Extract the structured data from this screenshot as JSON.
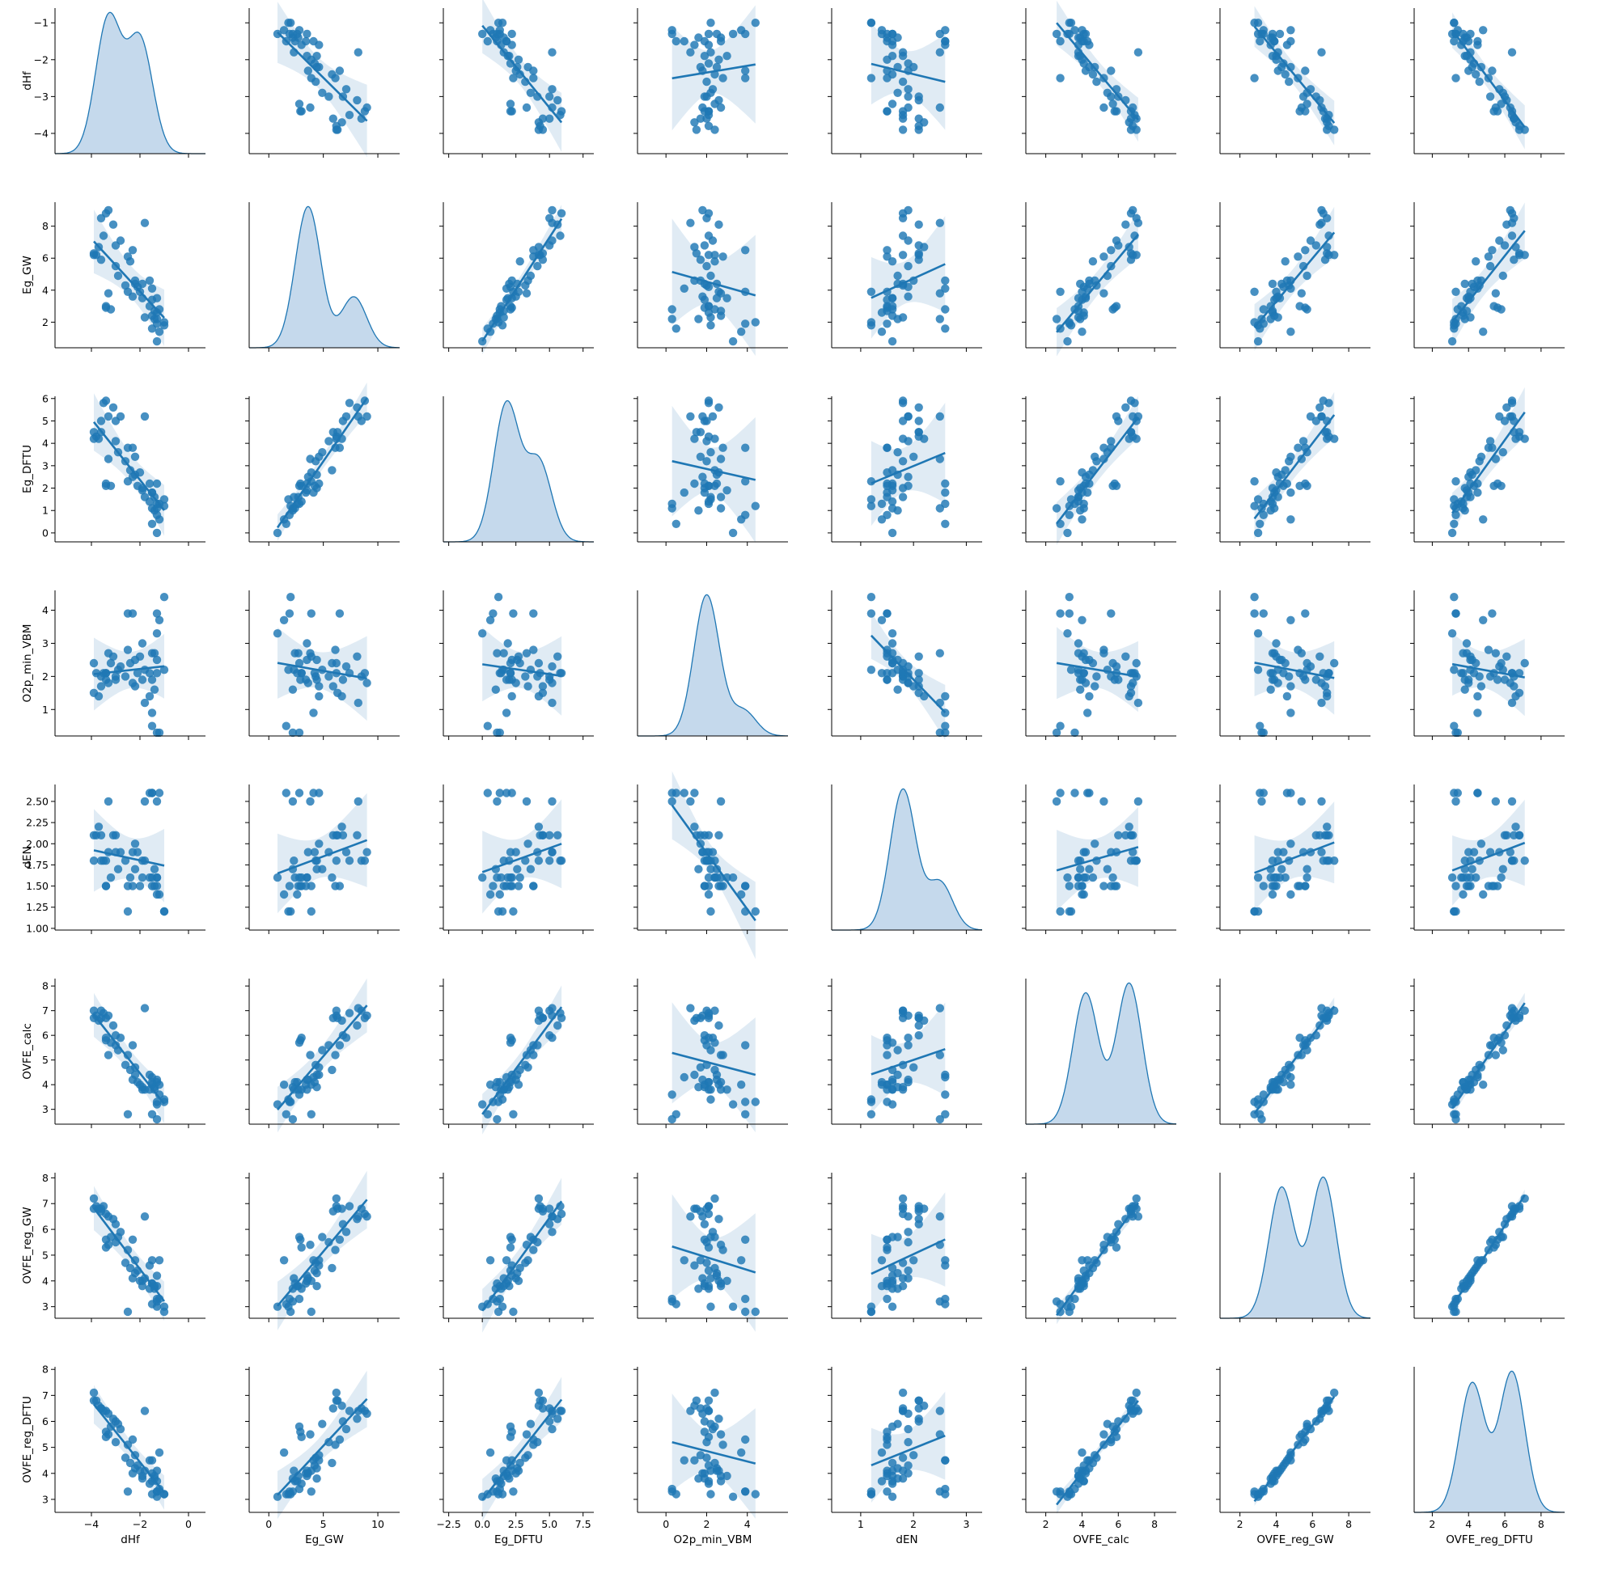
{
  "chart_data": {
    "type": "scatter",
    "kind": "pairplot",
    "variables": [
      "dHf",
      "Eg_GW",
      "Eg_DFTU",
      "O2p_min_VBM",
      "dEN",
      "OVFE_calc",
      "OVFE_reg_GW",
      "OVFE_reg_DFTU"
    ],
    "diagonal": "kde",
    "off_diagonal": "regplot",
    "colors": {
      "point": "#1f77b4",
      "line": "#1f77b4",
      "kde_fill": "#c5d9ec",
      "ci_band": "#dbe7f2"
    },
    "axes": {
      "dHf": {
        "lim": [
          -5.5,
          0.7
        ],
        "ticks": [
          -4,
          -2,
          0
        ],
        "tick_labels": [
          "−4",
          "−2",
          "0"
        ],
        "ylim": [
          -4.55,
          -0.6
        ],
        "yticks": [
          -4,
          -3,
          -2,
          -1
        ],
        "ytick_labels": [
          "−4",
          "−3",
          "−2",
          "−1"
        ]
      },
      "Eg_GW": {
        "lim": [
          -1.8,
          12.0
        ],
        "ticks": [
          0,
          5,
          10
        ],
        "tick_labels": [
          "0",
          "5",
          "10"
        ],
        "ylim": [
          0.4,
          9.5
        ],
        "yticks": [
          2,
          4,
          6,
          8
        ],
        "ytick_labels": [
          "2",
          "4",
          "6",
          "8"
        ]
      },
      "Eg_DFTU": {
        "lim": [
          -2.9,
          8.3
        ],
        "ticks": [
          -2.5,
          0.0,
          2.5,
          5.0,
          7.5
        ],
        "tick_labels": [
          "−2.5",
          "0.0",
          "2.5",
          "5.0",
          "7.5"
        ],
        "ylim": [
          -0.4,
          6.1
        ],
        "yticks": [
          0,
          1,
          2,
          3,
          4,
          5,
          6
        ],
        "ytick_labels": [
          "0",
          "1",
          "2",
          "3",
          "4",
          "5",
          "6"
        ]
      },
      "O2p_min_VBM": {
        "lim": [
          -1.4,
          6.0
        ],
        "ticks": [
          0,
          2,
          4
        ],
        "tick_labels": [
          "0",
          "2",
          "4"
        ],
        "ylim": [
          0.2,
          4.6
        ],
        "yticks": [
          1,
          2,
          3,
          4
        ],
        "ytick_labels": [
          "1",
          "2",
          "3",
          "4"
        ]
      },
      "dEN": {
        "lim": [
          0.45,
          3.3
        ],
        "ticks": [
          1,
          2,
          3
        ],
        "tick_labels": [
          "1",
          "2",
          "3"
        ],
        "ylim": [
          0.98,
          2.7
        ],
        "yticks": [
          1.0,
          1.25,
          1.5,
          1.75,
          2.0,
          2.25,
          2.5
        ],
        "ytick_labels": [
          "1.00",
          "1.25",
          "1.50",
          "1.75",
          "2.00",
          "2.25",
          "2.50"
        ]
      },
      "OVFE_calc": {
        "lim": [
          0.9,
          9.2
        ],
        "ticks": [
          2,
          4,
          6,
          8
        ],
        "tick_labels": [
          "2",
          "4",
          "6",
          "8"
        ],
        "ylim": [
          2.4,
          8.3
        ],
        "yticks": [
          3,
          4,
          5,
          6,
          7,
          8
        ],
        "ytick_labels": [
          "3",
          "4",
          "5",
          "6",
          "7",
          "8"
        ]
      },
      "OVFE_reg_GW": {
        "lim": [
          0.9,
          9.2
        ],
        "ticks": [
          2,
          4,
          6,
          8
        ],
        "tick_labels": [
          "2",
          "4",
          "6",
          "8"
        ],
        "ylim": [
          2.55,
          8.2
        ],
        "yticks": [
          3,
          4,
          5,
          6,
          7,
          8
        ],
        "ytick_labels": [
          "3",
          "4",
          "5",
          "6",
          "7",
          "8"
        ]
      },
      "OVFE_reg_DFTU": {
        "lim": [
          1.0,
          9.3
        ],
        "ticks": [
          2,
          4,
          6,
          8
        ],
        "tick_labels": [
          "2",
          "4",
          "6",
          "8"
        ],
        "ylim": [
          2.5,
          8.1
        ],
        "yticks": [
          3,
          4,
          5,
          6,
          7,
          8
        ],
        "ytick_labels": [
          "3",
          "4",
          "5",
          "6",
          "7",
          "8"
        ]
      }
    },
    "kde_peaks": {
      "dHf": [
        [
          -3.3,
          1.0
        ],
        [
          -2.0,
          0.84
        ]
      ],
      "Eg_GW": [
        [
          3.6,
          1.0
        ],
        [
          7.8,
          0.36
        ]
      ],
      "Eg_DFTU": [
        [
          1.8,
          1.0
        ],
        [
          4.2,
          0.58
        ]
      ],
      "O2p_min_VBM": [
        [
          2.0,
          1.0
        ],
        [
          3.8,
          0.18
        ]
      ],
      "dEN": [
        [
          1.8,
          1.0
        ],
        [
          2.5,
          0.34
        ]
      ],
      "OVFE_calc": [
        [
          4.2,
          0.93
        ],
        [
          6.6,
          1.0
        ]
      ],
      "OVFE_reg_GW": [
        [
          4.3,
          0.93
        ],
        [
          6.6,
          1.0
        ]
      ],
      "OVFE_reg_DFTU": [
        [
          4.2,
          0.92
        ],
        [
          6.4,
          1.0
        ]
      ]
    },
    "observations": [
      [
        -3.9,
        6.2,
        4.2,
        2.4,
        1.8,
        7.0,
        7.2,
        7.1
      ],
      [
        -3.8,
        6.2,
        4.3,
        2.1,
        2.1,
        6.8,
        6.9,
        6.8
      ],
      [
        -3.9,
        6.3,
        4.5,
        1.5,
        2.1,
        6.7,
        6.8,
        6.8
      ],
      [
        -3.7,
        6.7,
        4.2,
        1.4,
        2.2,
        6.6,
        6.8,
        6.6
      ],
      [
        -3.6,
        5.9,
        4.5,
        1.7,
        2.1,
        6.7,
        6.7,
        6.5
      ],
      [
        -3.5,
        7.4,
        5.8,
        2.1,
        1.8,
        6.9,
        6.9,
        6.4
      ],
      [
        -3.6,
        8.5,
        5.0,
        2.0,
        1.8,
        7.0,
        6.8,
        6.5
      ],
      [
        -3.4,
        8.8,
        5.9,
        2.1,
        1.8,
        6.7,
        6.6,
        6.4
      ],
      [
        -3.3,
        9.0,
        5.2,
        1.8,
        1.9,
        6.8,
        6.5,
        6.3
      ],
      [
        -3.1,
        8.1,
        5.6,
        2.6,
        2.1,
        6.4,
        6.4,
        6.1
      ],
      [
        -3.0,
        6.8,
        5.0,
        1.9,
        2.1,
        6.0,
        6.2,
        6.0
      ],
      [
        -2.8,
        7.1,
        5.2,
        2.3,
        1.9,
        5.9,
        5.9,
        5.7
      ],
      [
        -3.0,
        5.5,
        4.1,
        2.0,
        1.9,
        5.6,
        5.5,
        5.2
      ],
      [
        -2.9,
        4.9,
        3.6,
        2.2,
        1.7,
        5.4,
        5.7,
        5.9
      ],
      [
        -3.3,
        3.8,
        3.3,
        2.7,
        2.5,
        5.2,
        5.4,
        5.5
      ],
      [
        -3.4,
        2.9,
        2.2,
        1.9,
        1.5,
        5.8,
        5.6,
        5.6
      ],
      [
        -3.4,
        3.0,
        2.1,
        2.1,
        1.5,
        5.9,
        5.3,
        5.4
      ],
      [
        -3.2,
        2.8,
        2.1,
        2.4,
        1.6,
        5.7,
        5.7,
        5.8
      ],
      [
        -2.5,
        6.1,
        3.8,
        2.8,
        1.5,
        5.2,
        5.2,
        5.1
      ],
      [
        -2.6,
        4.3,
        3.2,
        2.0,
        1.8,
        4.8,
        4.7,
        4.6
      ],
      [
        -2.4,
        5.8,
        2.8,
        2.4,
        1.6,
        4.6,
        4.5,
        4.4
      ],
      [
        -2.2,
        4.6,
        3.4,
        1.7,
        2.0,
        4.7,
        4.8,
        4.7
      ],
      [
        -2.2,
        4.4,
        2.6,
        2.5,
        1.7,
        4.4,
        4.3,
        4.2
      ],
      [
        -2.1,
        4.2,
        2.1,
        2.1,
        1.9,
        4.1,
        4.4,
        4.3
      ],
      [
        -2.3,
        3.6,
        2.5,
        1.8,
        1.9,
        4.2,
        4.1,
        4.0
      ],
      [
        -2.0,
        3.9,
        2.7,
        2.6,
        1.5,
        4.0,
        4.0,
        4.1
      ],
      [
        -1.9,
        3.5,
        1.9,
        3.0,
        1.6,
        3.8,
        4.0,
        3.9
      ],
      [
        -1.8,
        2.3,
        1.6,
        2.2,
        1.8,
        3.8,
        4.1,
        4.1
      ],
      [
        -1.9,
        4.4,
        2.0,
        1.9,
        1.8,
        3.9,
        3.8,
        3.8
      ],
      [
        -1.6,
        3.0,
        1.4,
        2.1,
        1.6,
        3.8,
        3.7,
        3.6
      ],
      [
        -1.5,
        2.4,
        1.1,
        2.7,
        1.6,
        4.1,
        3.9,
        3.7
      ],
      [
        -1.5,
        3.4,
        1.8,
        1.9,
        1.5,
        4.0,
        3.9,
        4.0
      ],
      [
        -1.4,
        2.2,
        1.0,
        1.6,
        1.7,
        3.9,
        3.7,
        3.8
      ],
      [
        -1.3,
        2.6,
        1.3,
        2.1,
        1.4,
        4.1,
        3.8,
        3.7
      ],
      [
        -1.3,
        3.5,
        2.2,
        2.5,
        1.6,
        4.2,
        4.2,
        4.1
      ],
      [
        -1.4,
        2.7,
        1.6,
        2.7,
        1.5,
        3.8,
        3.8,
        3.9
      ],
      [
        -1.0,
        1.8,
        1.5,
        2.2,
        1.2,
        3.4,
        3.0,
        3.2
      ],
      [
        -1.3,
        0.8,
        0.0,
        3.3,
        1.6,
        3.2,
        3.0,
        3.1
      ],
      [
        -1.6,
        4.6,
        2.2,
        1.4,
        2.6,
        4.4,
        4.6,
        4.5
      ],
      [
        -1.5,
        4.1,
        1.8,
        0.9,
        2.6,
        4.3,
        4.8,
        4.5
      ],
      [
        -1.8,
        8.2,
        5.2,
        1.2,
        2.5,
        7.1,
        6.5,
        6.4
      ],
      [
        -1.2,
        1.4,
        0.6,
        3.7,
        1.4,
        4.0,
        4.8,
        4.8
      ],
      [
        -1.3,
        1.9,
        0.8,
        3.9,
        1.5,
        3.3,
        3.3,
        3.3
      ],
      [
        -1.0,
        2.0,
        1.2,
        4.4,
        1.2,
        3.3,
        2.8,
        3.2
      ],
      [
        -1.2,
        2.8,
        1.3,
        0.3,
        2.6,
        3.6,
        3.3,
        3.4
      ],
      [
        -1.3,
        2.2,
        1.1,
        0.3,
        2.5,
        2.6,
        3.2,
        3.3
      ],
      [
        -1.5,
        1.6,
        0.4,
        0.5,
        2.6,
        2.8,
        3.1,
        3.2
      ],
      [
        -2.5,
        3.9,
        2.3,
        3.9,
        1.2,
        2.8,
        2.8,
        3.3
      ],
      [
        -2.3,
        6.5,
        3.8,
        3.9,
        1.5,
        5.6,
        5.6,
        5.3
      ]
    ]
  }
}
